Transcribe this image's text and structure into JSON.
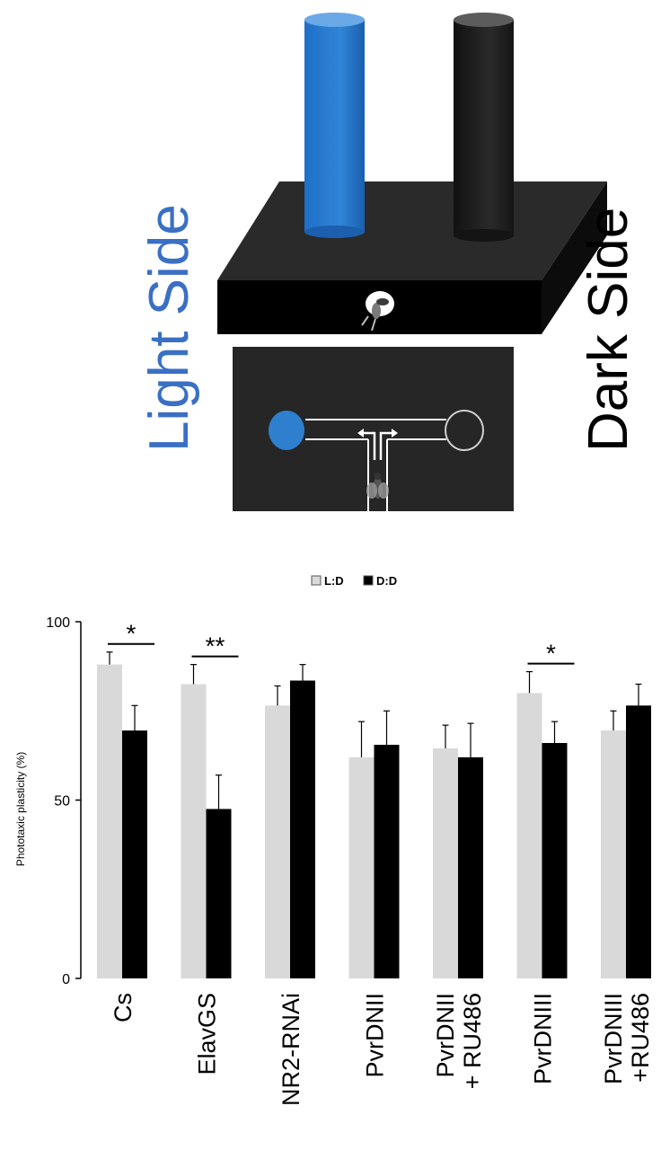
{
  "diagram": {
    "light_label": "Light Side",
    "dark_label": "Dark Side",
    "colors": {
      "light": "#2f7fcf",
      "box": "#262626",
      "box_front": "#000000"
    }
  },
  "chart_data": {
    "type": "bar",
    "categories": [
      "Cs",
      "ElavGS",
      "NR2-RNAi",
      "PvrDNII",
      "PvrDNII\n+ RU486",
      "PvrDNIII",
      "PvrDNIII\n+RU486"
    ],
    "series": [
      {
        "name": "L:D",
        "color": "#d9d9d9",
        "values": [
          88,
          82.5,
          76.5,
          62,
          64.5,
          80,
          69.5
        ],
        "errors": [
          3.5,
          5.5,
          5.5,
          10,
          6.5,
          6,
          5.5
        ]
      },
      {
        "name": "D:D",
        "color": "#000000",
        "values": [
          69.5,
          47.5,
          83.5,
          65.5,
          62,
          66,
          76.5
        ],
        "errors": [
          7,
          9.5,
          4.5,
          9.5,
          9.5,
          6,
          6
        ]
      }
    ],
    "significance": [
      {
        "category": "Cs",
        "mark": "*"
      },
      {
        "category": "ElavGS",
        "mark": "**"
      },
      {
        "category": "PvrDNIII",
        "mark": "*"
      }
    ],
    "ylabel": "Phototaxic plasticity (%)",
    "ylim": [
      0,
      100
    ],
    "yticks": [
      0,
      50,
      100
    ],
    "legend_position": "top-center"
  }
}
